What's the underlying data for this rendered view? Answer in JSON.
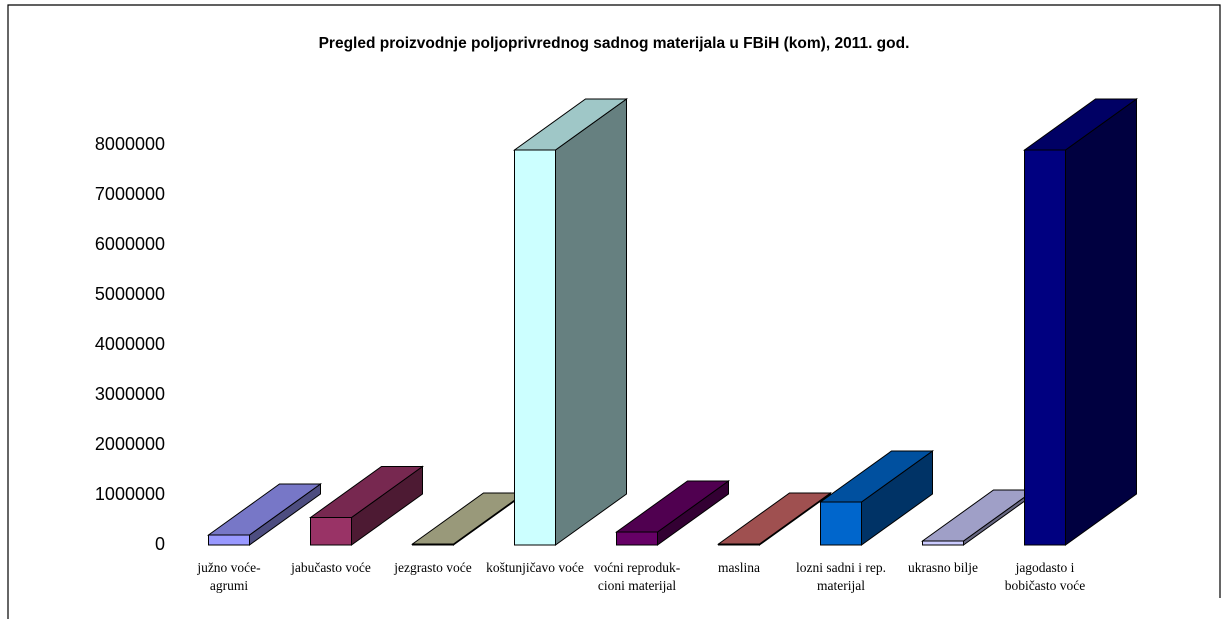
{
  "chart_data": {
    "type": "bar3d",
    "title": "Pregled proizvodnje poljoprivrednog sadnog materijala u FBiH (kom), 2011. god.",
    "categories": [
      "južno voće-agrumi",
      "jabučasto voće",
      "jezgrasto voće",
      "koštunjičavo voće",
      "voćni reproduk­cioni materijal",
      "maslina",
      "lozni sadni i rep. materijal",
      "ukrasno bilje",
      "jagodasto i bobičasto voće"
    ],
    "values": [
      200000,
      550000,
      20000,
      7900000,
      260000,
      20000,
      860000,
      80000,
      7900000
    ],
    "colors": [
      "#9999ff",
      "#993366",
      "#c4c49c",
      "#ccffff",
      "#660066",
      "#cc6666",
      "#0066cc",
      "#ccccff",
      "#000080"
    ],
    "ylim": [
      0,
      8000000
    ],
    "yticks": [
      0,
      1000000,
      2000000,
      3000000,
      4000000,
      5000000,
      6000000,
      7000000,
      8000000
    ]
  }
}
